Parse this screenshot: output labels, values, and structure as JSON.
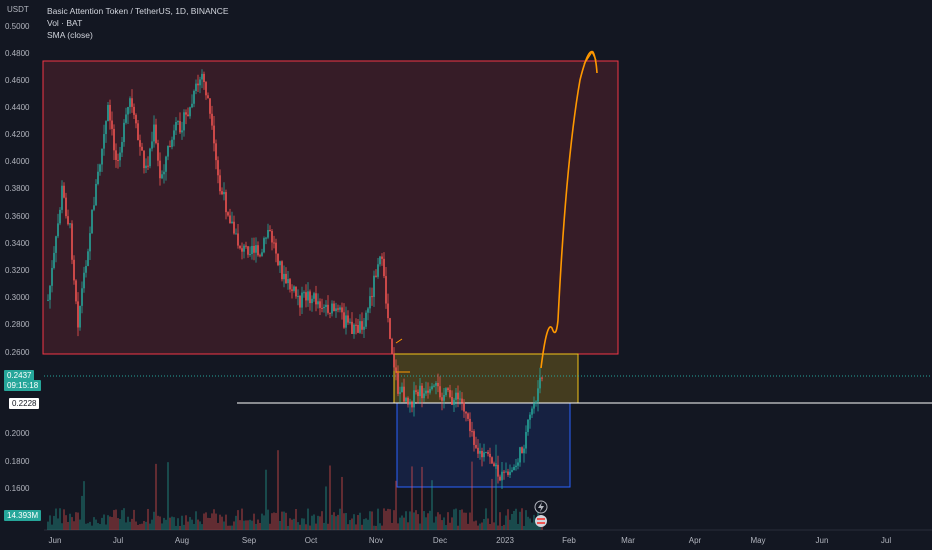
{
  "header": {
    "title": "Basic Attention Token / TetherUS, 1D, BINANCE",
    "vol_label": "Vol · BAT",
    "sma_label": "SMA (close)"
  },
  "y_axis": {
    "currency": "USDT",
    "ticks": [
      "0.5000",
      "0.4800",
      "0.4600",
      "0.4400",
      "0.4200",
      "0.4000",
      "0.3800",
      "0.3600",
      "0.3400",
      "0.3200",
      "0.3000",
      "0.2800",
      "0.2600",
      "0.2000",
      "0.1800",
      "0.1600"
    ]
  },
  "x_axis": {
    "ticks": [
      "Jun",
      "Jul",
      "Aug",
      "Sep",
      "Oct",
      "Nov",
      "Dec",
      "2023",
      "Feb",
      "Mar",
      "Apr",
      "May",
      "Jun",
      "Jul"
    ]
  },
  "badges": {
    "last_price": "0.2437",
    "countdown": "09:15:18",
    "level": "0.2228",
    "volume": "14.393M"
  },
  "colors": {
    "background": "#131722",
    "up": "#26a69a",
    "down": "#ef5350",
    "box_red": "#f23645",
    "box_yellow": "#f5c518",
    "box_blue": "#2962ff",
    "drawing": "#ff9800",
    "level_line": "#ffffff"
  },
  "icons": {
    "lightning": "lightning-icon",
    "flag": "flag-icon"
  }
}
